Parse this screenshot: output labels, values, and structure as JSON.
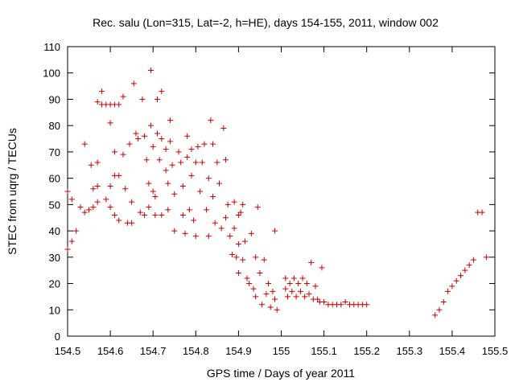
{
  "chart_data": {
    "type": "scatter",
    "title": "Rec. salu (Lon=315, Lat=-2, h=HE), days 154-155, 2011, window 002",
    "xlabel": "GPS time / Days of year 2011",
    "ylabel": "STEC from uqrg / TECUs",
    "xlim": [
      154.5,
      155.5
    ],
    "ylim": [
      0,
      110
    ],
    "xticks": [
      154.5,
      154.6,
      154.7,
      154.8,
      154.9,
      155.0,
      155.1,
      155.2,
      155.3,
      155.4,
      155.5
    ],
    "xtick_labels": [
      "154.5",
      "154.6",
      "154.7",
      "154.8",
      "154.9",
      "155",
      "155.1",
      "155.2",
      "155.3",
      "155.4",
      "155.5"
    ],
    "yticks": [
      0,
      10,
      20,
      30,
      40,
      50,
      60,
      70,
      80,
      90,
      100,
      110
    ],
    "ytick_labels": [
      "0",
      "10",
      "20",
      "30",
      "40",
      "50",
      "60",
      "70",
      "80",
      "90",
      "100",
      "110"
    ],
    "marker": "plus",
    "color": "#cc0000",
    "grid": false,
    "legend": "none",
    "series": [
      {
        "points": [
          [
            154.5,
            55
          ],
          [
            154.5,
            33
          ],
          [
            154.51,
            36
          ],
          [
            154.51,
            52
          ],
          [
            154.52,
            40
          ],
          [
            154.53,
            49
          ],
          [
            154.54,
            73
          ],
          [
            154.54,
            47
          ],
          [
            154.55,
            48
          ],
          [
            154.555,
            65
          ],
          [
            154.56,
            56
          ],
          [
            154.56,
            49
          ],
          [
            154.57,
            89
          ],
          [
            154.57,
            66
          ],
          [
            154.57,
            57
          ],
          [
            154.57,
            51
          ],
          [
            154.58,
            93
          ],
          [
            154.58,
            88
          ],
          [
            154.59,
            88
          ],
          [
            154.59,
            52
          ],
          [
            154.6,
            81
          ],
          [
            154.6,
            57
          ],
          [
            154.6,
            88
          ],
          [
            154.6,
            49
          ],
          [
            154.61,
            88
          ],
          [
            154.61,
            70
          ],
          [
            154.61,
            61
          ],
          [
            154.61,
            46
          ],
          [
            154.62,
            88
          ],
          [
            154.62,
            61
          ],
          [
            154.62,
            44
          ],
          [
            154.63,
            91
          ],
          [
            154.63,
            69
          ],
          [
            154.635,
            56
          ],
          [
            154.64,
            43
          ],
          [
            154.645,
            73
          ],
          [
            154.65,
            51
          ],
          [
            154.65,
            43
          ],
          [
            154.655,
            96
          ],
          [
            154.66,
            77
          ],
          [
            154.665,
            75
          ],
          [
            154.67,
            47
          ],
          [
            154.675,
            90
          ],
          [
            154.68,
            76
          ],
          [
            154.68,
            46
          ],
          [
            154.685,
            67
          ],
          [
            154.69,
            58
          ],
          [
            154.69,
            49
          ],
          [
            154.695,
            101
          ],
          [
            154.695,
            80
          ],
          [
            154.7,
            72
          ],
          [
            154.7,
            55
          ],
          [
            154.705,
            53
          ],
          [
            154.705,
            46
          ],
          [
            154.71,
            77
          ],
          [
            154.71,
            90
          ],
          [
            154.715,
            67
          ],
          [
            154.72,
            93
          ],
          [
            154.72,
            75
          ],
          [
            154.72,
            46
          ],
          [
            154.73,
            63
          ],
          [
            154.73,
            71
          ],
          [
            154.735,
            58
          ],
          [
            154.735,
            48
          ],
          [
            154.74,
            74
          ],
          [
            154.74,
            82
          ],
          [
            154.745,
            65
          ],
          [
            154.75,
            54
          ],
          [
            154.75,
            40
          ],
          [
            154.76,
            70
          ],
          [
            154.765,
            66
          ],
          [
            154.77,
            57
          ],
          [
            154.77,
            46
          ],
          [
            154.775,
            39
          ],
          [
            154.78,
            76
          ],
          [
            154.78,
            68
          ],
          [
            154.785,
            48
          ],
          [
            154.79,
            71
          ],
          [
            154.79,
            61
          ],
          [
            154.795,
            44
          ],
          [
            154.8,
            66
          ],
          [
            154.8,
            38
          ],
          [
            154.805,
            72
          ],
          [
            154.81,
            55
          ],
          [
            154.815,
            66
          ],
          [
            154.82,
            73
          ],
          [
            154.825,
            48
          ],
          [
            154.83,
            60
          ],
          [
            154.83,
            38
          ],
          [
            154.835,
            82
          ],
          [
            154.84,
            73
          ],
          [
            154.84,
            53
          ],
          [
            154.845,
            43
          ],
          [
            154.85,
            66
          ],
          [
            154.855,
            58
          ],
          [
            154.86,
            41
          ],
          [
            154.865,
            79
          ],
          [
            154.87,
            67
          ],
          [
            154.87,
            45
          ],
          [
            154.875,
            50
          ],
          [
            154.88,
            38
          ],
          [
            154.885,
            31
          ],
          [
            154.89,
            51
          ],
          [
            154.89,
            41
          ],
          [
            154.895,
            30
          ],
          [
            154.9,
            46
          ],
          [
            154.9,
            35
          ],
          [
            154.9,
            24
          ],
          [
            154.905,
            47
          ],
          [
            154.91,
            50
          ],
          [
            154.91,
            29
          ],
          [
            154.915,
            36
          ],
          [
            154.92,
            22
          ],
          [
            154.925,
            20
          ],
          [
            154.93,
            39
          ],
          [
            154.935,
            18
          ],
          [
            154.94,
            30
          ],
          [
            154.94,
            15
          ],
          [
            154.945,
            49
          ],
          [
            154.95,
            24
          ],
          [
            154.955,
            12
          ],
          [
            154.96,
            29
          ],
          [
            154.965,
            16
          ],
          [
            154.97,
            20
          ],
          [
            154.975,
            11
          ],
          [
            154.98,
            17
          ],
          [
            154.985,
            14
          ],
          [
            154.985,
            40
          ],
          [
            154.99,
            10
          ],
          [
            155.01,
            22
          ],
          [
            155.01,
            18
          ],
          [
            155.015,
            15
          ],
          [
            155.02,
            20
          ],
          [
            155.025,
            17
          ],
          [
            155.03,
            22
          ],
          [
            155.035,
            15
          ],
          [
            155.04,
            20
          ],
          [
            155.045,
            17
          ],
          [
            155.05,
            22
          ],
          [
            155.055,
            15
          ],
          [
            155.06,
            20
          ],
          [
            155.065,
            16
          ],
          [
            155.07,
            28
          ],
          [
            155.075,
            14
          ],
          [
            155.08,
            19
          ],
          [
            155.085,
            14
          ],
          [
            155.09,
            13
          ],
          [
            155.095,
            26
          ],
          [
            155.1,
            13
          ],
          [
            155.11,
            12
          ],
          [
            155.12,
            12
          ],
          [
            155.13,
            12
          ],
          [
            155.14,
            12
          ],
          [
            155.15,
            13
          ],
          [
            155.16,
            12
          ],
          [
            155.17,
            12
          ],
          [
            155.18,
            12
          ],
          [
            155.19,
            12
          ],
          [
            155.2,
            12
          ],
          [
            155.36,
            8
          ],
          [
            155.37,
            10
          ],
          [
            155.38,
            13
          ],
          [
            155.39,
            17
          ],
          [
            155.4,
            19
          ],
          [
            155.41,
            21
          ],
          [
            155.42,
            23
          ],
          [
            155.43,
            25
          ],
          [
            155.44,
            27
          ],
          [
            155.45,
            29
          ],
          [
            155.46,
            47
          ],
          [
            155.47,
            47
          ],
          [
            155.48,
            30
          ]
        ]
      }
    ]
  }
}
